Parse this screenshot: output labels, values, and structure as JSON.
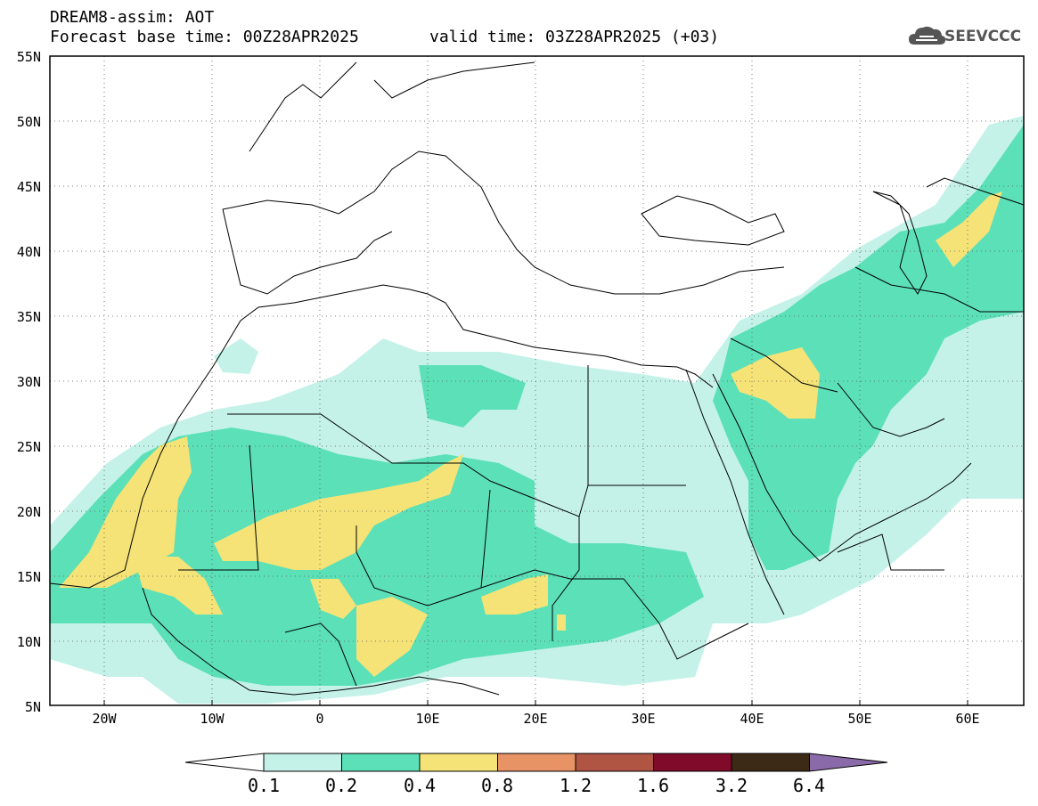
{
  "header": {
    "title_line1": "DREAM8-assim: AOT",
    "title_line2": "Forecast base time: 00Z28APR2025",
    "valid_time": "valid time: 03Z28APR2025 (+03)"
  },
  "logo": {
    "text": "SEEVCCC",
    "icon": "cloud-icon"
  },
  "map": {
    "projection": "lat-lon",
    "lon_range": [
      -25,
      65
    ],
    "lat_range": [
      5,
      55
    ],
    "grid": true,
    "lat_labels": [
      "55N",
      "50N",
      "45N",
      "40N",
      "35N",
      "30N",
      "25N",
      "20N",
      "15N",
      "10N",
      "5N"
    ],
    "lon_labels": [
      "20W",
      "10W",
      "0",
      "10E",
      "20E",
      "30E",
      "40E",
      "50E",
      "60E"
    ],
    "field": "AOT"
  },
  "colorbar": {
    "labels": [
      "0.1",
      "0.2",
      "0.4",
      "0.8",
      "1.2",
      "1.6",
      "3.2",
      "6.4"
    ],
    "colors": [
      "#ffffff",
      "#c4f2e9",
      "#5ce0b8",
      "#f5e377",
      "#e89366",
      "#b05444",
      "#7f0a2a",
      "#3c2a17",
      "#8a6aa8"
    ]
  }
}
